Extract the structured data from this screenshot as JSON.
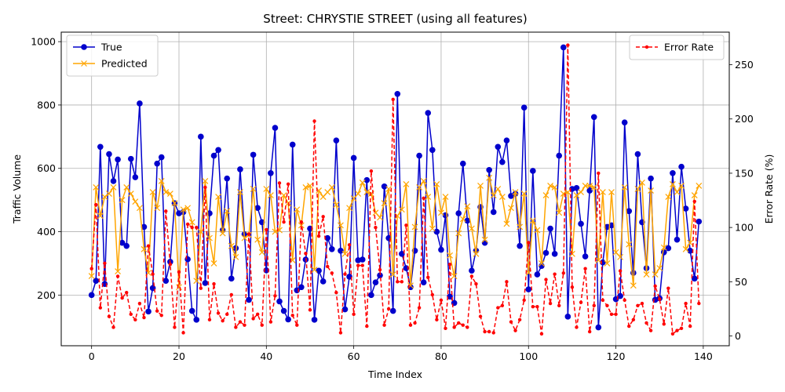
{
  "chart_data": {
    "type": "line",
    "title": "Street: CHRYSTIE STREET (using all features)",
    "xlabel": "Time Index",
    "ylabel": "Traffic Volume",
    "y2label": "Error Rate (%)",
    "xlim": [
      -6.95,
      145.95
    ],
    "ylim": [
      40,
      1030
    ],
    "y2lim": [
      -9,
      280
    ],
    "xticks": [
      0,
      20,
      40,
      60,
      80,
      100,
      120,
      140
    ],
    "yticks": [
      200,
      400,
      600,
      800,
      1000
    ],
    "y2ticks": [
      0,
      50,
      100,
      150,
      200,
      250
    ],
    "grid": true,
    "legend_left_position": "upper-left",
    "legend_right_position": "upper-right",
    "series": [
      {
        "name": "True",
        "axis": "left",
        "color": "#0000cc",
        "marker": "circle",
        "values": [
          200,
          245,
          668,
          235,
          645,
          560,
          628,
          365,
          355,
          630,
          572,
          805,
          415,
          148,
          222,
          615,
          635,
          245,
          305,
          490,
          458,
          462,
          313,
          150,
          122,
          700,
          238,
          458,
          640,
          658,
          405,
          568,
          252,
          348,
          597,
          392,
          185,
          643,
          475,
          430,
          278,
          585,
          728,
          180,
          150,
          123,
          675,
          215,
          225,
          312,
          410,
          122,
          277,
          243,
          380,
          345,
          688,
          340,
          155,
          258,
          633,
          310,
          312,
          563,
          200,
          240,
          262,
          543,
          380,
          150,
          835,
          330,
          285,
          225,
          340,
          640,
          240,
          775,
          658,
          400,
          343,
          452,
          195,
          175,
          458,
          615,
          435,
          277,
          340,
          478,
          365,
          595,
          462,
          668,
          620,
          688,
          513,
          520,
          355,
          792,
          218,
          592,
          265,
          292,
          333,
          410,
          330,
          640,
          982,
          132,
          535,
          538,
          425,
          322,
          530,
          762,
          98,
          303,
          415,
          420,
          187,
          197,
          745,
          465,
          270,
          645,
          430,
          285,
          568,
          185,
          190,
          335,
          348,
          585,
          375,
          605,
          473,
          340,
          252,
          432
        ]
      },
      {
        "name": "Predicted",
        "axis": "left",
        "color": "#ffa500",
        "marker": "x",
        "values": [
          260,
          540,
          450,
          510,
          520,
          540,
          275,
          500,
          540,
          520,
          495,
          475,
          345,
          270,
          525,
          475,
          560,
          525,
          520,
          490,
          225,
          470,
          475,
          430,
          245,
          400,
          560,
          380,
          300,
          510,
          395,
          465,
          355,
          320,
          525,
          380,
          390,
          535,
          375,
          335,
          535,
          515,
          400,
          405,
          515,
          490,
          310,
          470,
          420,
          540,
          545,
          280,
          530,
          510,
          525,
          540,
          485,
          420,
          330,
          475,
          505,
          520,
          555,
          525,
          520,
          460,
          445,
          490,
          535,
          265,
          450,
          470,
          550,
          230,
          415,
          540,
          560,
          510,
          410,
          550,
          460,
          510,
          325,
          260,
          395,
          440,
          480,
          410,
          330,
          545,
          375,
          570,
          515,
          535,
          510,
          425,
          475,
          525,
          415,
          520,
          270,
          435,
          405,
          300,
          515,
          545,
          540,
          460,
          520,
          525,
          330,
          515,
          525,
          545,
          545,
          540,
          310,
          525,
          300,
          525,
          335,
          320,
          540,
          360,
          230,
          535,
          555,
          265,
          530,
          265,
          285,
          350,
          510,
          550,
          525,
          545,
          345,
          365,
          515,
          545
        ]
      },
      {
        "name": "Error Rate",
        "axis": "right",
        "color": "#ff0000",
        "marker": "dot",
        "dashed": true,
        "values": [
          62,
          121,
          26,
          67,
          18,
          8,
          55,
          35,
          40,
          20,
          15,
          30,
          17,
          83,
          57,
          23,
          19,
          115,
          66,
          8,
          59,
          3,
          103,
          100,
          100,
          44,
          137,
          15,
          48,
          21,
          14,
          20,
          38,
          8,
          13,
          10,
          94,
          16,
          20,
          10,
          98,
          13,
          37,
          141,
          105,
          140,
          19,
          10,
          105,
          76,
          24,
          198,
          92,
          110,
          64,
          58,
          40,
          3,
          57,
          84,
          20,
          65,
          65,
          9,
          152,
          100,
          61,
          10,
          25,
          218,
          50,
          50,
          102,
          10,
          12,
          26,
          127,
          54,
          38,
          15,
          33,
          7,
          66,
          8,
          12,
          10,
          8,
          55,
          48,
          18,
          4,
          4,
          3,
          26,
          28,
          50,
          13,
          5,
          15,
          33,
          86,
          27,
          27,
          2,
          52,
          30,
          57,
          28,
          58,
          268,
          45,
          8,
          31,
          62,
          4,
          28,
          150,
          33,
          28,
          20,
          20,
          60,
          33,
          9,
          15,
          28,
          30,
          12,
          5,
          46,
          34,
          11,
          44,
          2,
          5,
          7,
          30,
          9,
          124,
          30
        ]
      }
    ]
  }
}
